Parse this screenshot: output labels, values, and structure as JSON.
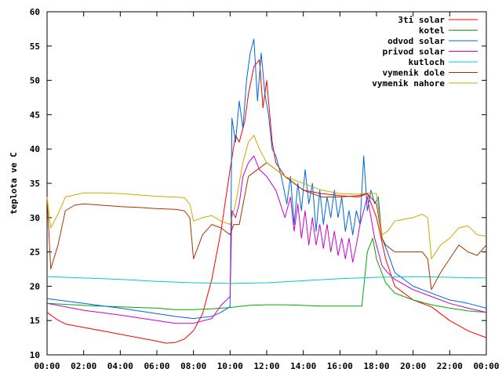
{
  "chart_data": {
    "type": "line",
    "title": "",
    "xlabel": "",
    "ylabel": "teplota ve C",
    "ylim": [
      10,
      60
    ],
    "xlim": [
      0,
      24
    ],
    "grid": false,
    "legend": "top-right",
    "x_ticks": [
      "00:00",
      "02:00",
      "04:00",
      "06:00",
      "08:00",
      "10:00",
      "12:00",
      "14:00",
      "16:00",
      "18:00",
      "20:00",
      "22:00",
      "00:00"
    ],
    "y_ticks": [
      "10",
      "15",
      "20",
      "25",
      "30",
      "35",
      "40",
      "45",
      "50",
      "55",
      "60"
    ],
    "series": [
      {
        "name": "3ti solar",
        "color": "#ff0000",
        "x": [
          0,
          0.5,
          1,
          2,
          3,
          4,
          5,
          6,
          6.5,
          7,
          7.5,
          8,
          8.5,
          9,
          9.5,
          10,
          10.3,
          10.5,
          10.8,
          11,
          11.3,
          11.6,
          11.8,
          12,
          12.3,
          12.5,
          13,
          13.5,
          14,
          15,
          16,
          17,
          17.5,
          18,
          18.5,
          19,
          20,
          21,
          22,
          23,
          24
        ],
        "y": [
          16.2,
          15.2,
          14.5,
          14.0,
          13.5,
          13.0,
          12.5,
          12.0,
          11.7,
          11.8,
          12.3,
          13.5,
          16,
          21,
          28,
          37,
          42,
          41,
          44,
          48,
          52,
          53,
          46,
          50,
          41,
          38,
          36,
          35,
          34,
          33.5,
          33.2,
          33,
          33.5,
          30,
          24,
          20,
          18,
          17,
          15,
          13.5,
          12.5
        ]
      },
      {
        "name": "kotel",
        "color": "#00aa00",
        "x": [
          0,
          2,
          4,
          6,
          7,
          8,
          9,
          10,
          11,
          12,
          13,
          14,
          15,
          16,
          17,
          17.2,
          17.5,
          17.8,
          18,
          18.5,
          19,
          20,
          21,
          22,
          23,
          24
        ],
        "y": [
          17.5,
          17.2,
          17.0,
          16.8,
          16.6,
          16.6,
          16.7,
          16.9,
          17.2,
          17.3,
          17.3,
          17.2,
          17.1,
          17.1,
          17.1,
          17.1,
          25,
          27,
          24,
          20.5,
          19,
          18,
          17.3,
          16.8,
          16.4,
          16.2
        ]
      },
      {
        "name": "odvod solar",
        "color": "#0066dd",
        "x": [
          0,
          2,
          4,
          6,
          7,
          8,
          9,
          9.5,
          10,
          10.1,
          10.3,
          10.5,
          10.7,
          10.9,
          11.1,
          11.3,
          11.5,
          11.7,
          11.9,
          12.1,
          12.3,
          12.5,
          12.8,
          13.1,
          13.3,
          13.5,
          13.7,
          13.9,
          14.1,
          14.3,
          14.5,
          14.7,
          14.9,
          15.1,
          15.3,
          15.5,
          15.7,
          15.9,
          16.1,
          16.3,
          16.5,
          16.7,
          16.9,
          17.1,
          17.3,
          17.5,
          17.7,
          17.9,
          18.1,
          18.3,
          18.6,
          19,
          20,
          21,
          22,
          23,
          24
        ],
        "y": [
          18.2,
          17.5,
          16.8,
          16.0,
          15.6,
          15.3,
          15.6,
          16.2,
          17.0,
          44.5,
          41,
          47,
          43,
          50,
          54,
          56,
          47,
          54,
          48,
          45,
          40,
          39,
          36,
          32,
          36,
          29,
          35,
          31,
          37,
          32,
          35,
          28,
          34,
          29,
          33,
          30,
          34,
          30,
          33,
          28,
          31,
          27.5,
          31,
          29,
          39,
          31,
          34,
          32,
          33,
          27,
          25,
          22,
          20,
          19,
          18,
          17.5,
          16.8
        ]
      },
      {
        "name": "privod solar",
        "color": "#cc00cc",
        "x": [
          0,
          2,
          4,
          6,
          7,
          8,
          9,
          9.5,
          10,
          10.1,
          10.3,
          10.5,
          10.7,
          11,
          11.3,
          11.6,
          12,
          12.5,
          13,
          13.3,
          13.5,
          13.7,
          13.9,
          14.1,
          14.3,
          14.5,
          14.7,
          14.9,
          15.1,
          15.3,
          15.5,
          15.7,
          15.9,
          16.1,
          16.3,
          16.5,
          16.7,
          16.9,
          17.1,
          17.3,
          17.5,
          17.7,
          17.9,
          18.1,
          18.3,
          18.6,
          19,
          20,
          21,
          22,
          23,
          24
        ],
        "y": [
          17.5,
          16.5,
          15.8,
          15.0,
          14.6,
          14.6,
          15.3,
          17.2,
          18.5,
          31,
          30,
          32,
          36,
          38,
          39,
          37,
          36,
          34,
          30,
          33,
          28,
          32,
          27,
          31,
          26,
          30,
          26,
          29,
          25.5,
          29,
          25,
          28,
          24.5,
          27,
          24,
          27,
          23.5,
          26,
          29,
          31,
          33,
          30,
          27,
          25,
          23,
          22,
          21,
          19.5,
          18.5,
          17.5,
          16.8,
          16.2
        ]
      },
      {
        "name": "kutloch",
        "color": "#00cccc",
        "x": [
          0,
          2,
          4,
          6,
          8,
          10,
          12,
          14,
          16,
          18,
          20,
          22,
          24
        ],
        "y": [
          21.4,
          21.2,
          21.0,
          20.7,
          20.5,
          20.4,
          20.5,
          20.8,
          21.1,
          21.3,
          21.4,
          21.3,
          21.2
        ]
      },
      {
        "name": "vymenik dole",
        "color": "#aa3300",
        "x": [
          0,
          0.2,
          0.6,
          1,
          1.5,
          2,
          3,
          4,
          5,
          6,
          7,
          7.5,
          7.8,
          8,
          8.5,
          9,
          9.5,
          10,
          10.2,
          10.5,
          11,
          12,
          13,
          14,
          15,
          16,
          17,
          17.5,
          18,
          18.3,
          18.5,
          19,
          20,
          20.5,
          20.8,
          21,
          21.5,
          22,
          22.5,
          23,
          23.5,
          24
        ],
        "y": [
          33,
          22.5,
          26,
          31,
          31.8,
          32,
          31.8,
          31.6,
          31.5,
          31.3,
          31.2,
          31.0,
          30,
          24,
          27.5,
          29,
          28.5,
          27.5,
          29,
          29,
          36,
          38,
          36,
          34,
          33,
          33,
          33.2,
          33.5,
          32,
          27,
          26,
          25,
          25,
          25,
          24,
          19.5,
          22,
          24,
          26,
          25,
          24.5,
          26
        ]
      },
      {
        "name": "vymenik nahore",
        "color": "#ccaa00",
        "x": [
          0,
          0.2,
          0.6,
          1,
          2,
          3,
          4,
          5,
          6,
          7,
          7.5,
          7.8,
          8,
          8.5,
          9,
          9.5,
          10,
          10.3,
          10.7,
          11,
          11.3,
          11.6,
          12,
          13,
          14,
          15,
          16,
          17,
          17.5,
          18,
          18.3,
          18.6,
          19,
          20,
          20.5,
          20.8,
          21,
          21.5,
          22,
          22.5,
          23,
          23.5,
          24
        ],
        "y": [
          33,
          28.5,
          30.5,
          33,
          33.6,
          33.6,
          33.5,
          33.3,
          33.1,
          33.0,
          32.9,
          32,
          29.5,
          30,
          30.3,
          29.5,
          29,
          32,
          38,
          41,
          42,
          40,
          38,
          36,
          35,
          34,
          33.5,
          33.4,
          33.6,
          33.5,
          27.5,
          28,
          29.5,
          30,
          30.5,
          30,
          24,
          26,
          27,
          28.5,
          28.8,
          27.5,
          27.3
        ]
      }
    ]
  }
}
